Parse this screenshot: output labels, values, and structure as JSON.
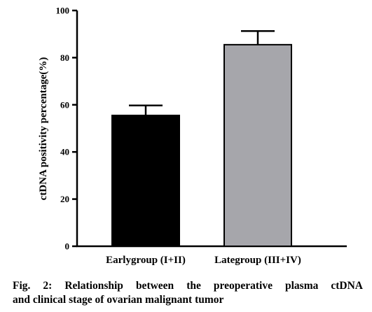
{
  "chart_data": {
    "type": "bar",
    "categories": [
      "Earlygroup (I+II)",
      "Lategroup (III+IV)"
    ],
    "values": [
      55.5,
      85.5
    ],
    "error_bars": [
      4.2,
      5.8
    ],
    "colors": [
      "#000000",
      "#a6a6ab"
    ],
    "ylabel": "ctDNA positivity percentage(%)",
    "xlabel": "",
    "ylim": [
      0,
      100
    ],
    "yticks": [
      0,
      20,
      40,
      60,
      80,
      100
    ],
    "grid": false,
    "legend": "none"
  },
  "caption": {
    "line1_words": [
      "Fig.",
      "2:",
      "Relationship",
      "between",
      "the",
      "preoperative",
      "plasma",
      "ctDNA"
    ],
    "line2": "and clinical stage of ovarian malignant tumor"
  }
}
